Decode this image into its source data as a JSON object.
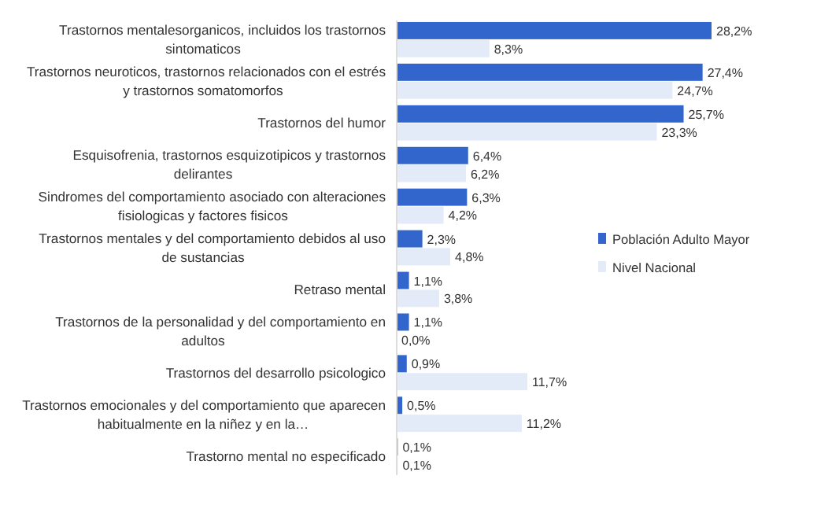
{
  "chart_data": {
    "type": "bar",
    "orientation": "horizontal",
    "categories": [
      "Trastornos mentalesorganicos, incluidos los trastornos sintomaticos",
      "Trastornos neuroticos, trastornos relacionados con el estrés y trastornos somatomorfos",
      "Trastornos del humor",
      "Esquisofrenia, trastornos esquizotipicos y trastornos delirantes",
      "Sindromes del comportamiento asociado con alteraciones fisiologicas y factores fisicos",
      "Trastornos mentales y del comportamiento debidos al uso de sustancias",
      "Retraso mental",
      "Trastornos de la personalidad y del comportamiento en adultos",
      "Trastornos del desarrollo psicologico",
      "Trastornos emocionales y del comportamiento que aparecen habitualmente en la niñez y en la…",
      "Trastorno mental no especificado"
    ],
    "series": [
      {
        "name": "Población Adulto Mayor",
        "color": "#3366cc",
        "values": [
          28.2,
          27.4,
          25.7,
          6.4,
          6.3,
          2.3,
          1.1,
          1.1,
          0.9,
          0.5,
          0.1
        ],
        "value_labels": [
          "28,2%",
          "27,4%",
          "25,7%",
          "6,4%",
          "6,3%",
          "2,3%",
          "1,1%",
          "1,1%",
          "0,9%",
          "0,5%",
          "0,1%"
        ]
      },
      {
        "name": "Nivel Nacional",
        "color": "#e3eaf8",
        "values": [
          8.3,
          24.7,
          23.3,
          6.2,
          4.2,
          4.8,
          3.8,
          0.0,
          11.7,
          11.2,
          0.1
        ],
        "value_labels": [
          "8,3%",
          "24,7%",
          "23,3%",
          "6,2%",
          "4,2%",
          "4,8%",
          "3,8%",
          "0,0%",
          "11,7%",
          "11,2%",
          "0,1%"
        ]
      }
    ],
    "legend": "right"
  }
}
